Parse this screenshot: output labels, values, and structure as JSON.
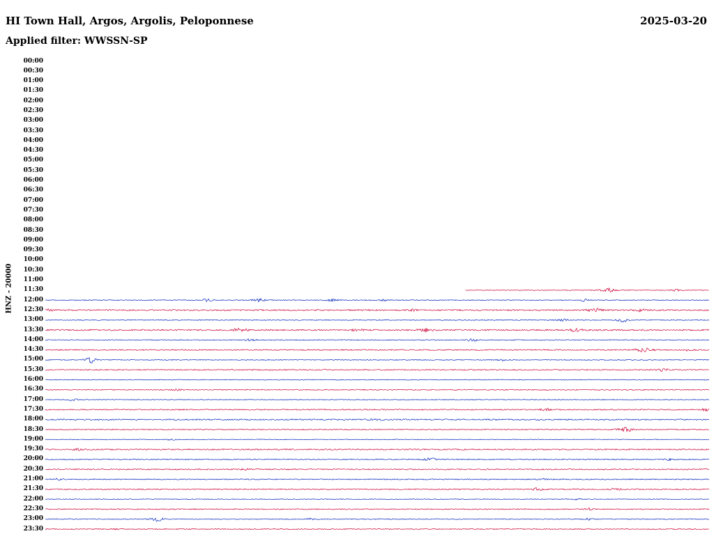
{
  "colors": {
    "red": "#cc0033",
    "blue": "#0022bb"
  },
  "chart_data": {
    "type": "line",
    "subtype": "helicorder-seismogram",
    "title": "HI Town Hall, Argos, Argolis, Peloponnese",
    "date": "2025-03-20",
    "filter": "Applied filter: WWSSN-SP",
    "y_axis_label": "HNZ - 20000",
    "time_step_minutes": 30,
    "row_labels": [
      "00:00",
      "00:30",
      "01:00",
      "01:30",
      "02:00",
      "02:30",
      "03:00",
      "03:30",
      "04:00",
      "04:30",
      "05:00",
      "05:30",
      "06:00",
      "06:30",
      "07:00",
      "07:30",
      "08:00",
      "08:30",
      "09:00",
      "09:30",
      "10:00",
      "10:30",
      "11:00",
      "11:30",
      "12:00",
      "12:30",
      "13:00",
      "13:30",
      "14:00",
      "14:30",
      "15:00",
      "15:30",
      "16:00",
      "16:30",
      "17:00",
      "17:30",
      "18:00",
      "18:30",
      "19:00",
      "19:30",
      "20:00",
      "20:30",
      "21:00",
      "21:30",
      "22:00",
      "22:30",
      "23:00",
      "23:30"
    ],
    "traces": [
      {
        "label": "11:30",
        "color": "red",
        "start": 0.633,
        "noise": 0.55,
        "bursts": [
          [
            0.847,
            3.0,
            7
          ],
          [
            0.95,
            1.2,
            5
          ]
        ]
      },
      {
        "label": "12:00",
        "color": "blue",
        "start": 0,
        "noise": 0.6,
        "bursts": [
          [
            0.243,
            1.8,
            5
          ],
          [
            0.322,
            2.2,
            6
          ],
          [
            0.432,
            1.8,
            5
          ],
          [
            0.512,
            1.6,
            5
          ],
          [
            0.812,
            1.4,
            4
          ]
        ]
      },
      {
        "label": "12:30",
        "color": "red",
        "start": 0,
        "noise": 0.95,
        "bursts": [
          [
            0.008,
            1.8,
            4
          ],
          [
            0.55,
            1.2,
            6
          ],
          [
            0.828,
            2.4,
            7
          ],
          [
            0.894,
            2.0,
            6
          ]
        ]
      },
      {
        "label": "13:00",
        "color": "blue",
        "start": 0,
        "noise": 0.6,
        "bursts": [
          [
            0.78,
            1.4,
            5
          ],
          [
            0.87,
            2.4,
            6
          ]
        ]
      },
      {
        "label": "13:30",
        "color": "red",
        "start": 0,
        "noise": 1.0,
        "bursts": [
          [
            0.294,
            2.4,
            7
          ],
          [
            0.47,
            1.6,
            6
          ],
          [
            0.572,
            2.2,
            7
          ],
          [
            0.8,
            2.0,
            6
          ]
        ]
      },
      {
        "label": "14:00",
        "color": "blue",
        "start": 0,
        "noise": 0.6,
        "bursts": [
          [
            0.31,
            2.0,
            5
          ],
          [
            0.642,
            2.4,
            5
          ]
        ]
      },
      {
        "label": "14:30",
        "color": "red",
        "start": 0,
        "noise": 0.8,
        "bursts": [
          [
            0.903,
            3.2,
            9
          ],
          [
            0.97,
            1.4,
            5
          ]
        ]
      },
      {
        "label": "15:00",
        "color": "blue",
        "start": 0,
        "noise": 0.6,
        "bursts": [
          [
            0.068,
            4.5,
            5
          ],
          [
            0.69,
            1.4,
            5
          ]
        ]
      },
      {
        "label": "15:30",
        "color": "red",
        "start": 0,
        "noise": 0.8,
        "bursts": [
          [
            0.93,
            1.8,
            6
          ]
        ]
      },
      {
        "label": "16:00",
        "color": "blue",
        "start": 0,
        "noise": 0.5,
        "bursts": []
      },
      {
        "label": "16:30",
        "color": "red",
        "start": 0,
        "noise": 0.7,
        "bursts": [
          [
            0.2,
            0.9,
            6
          ]
        ]
      },
      {
        "label": "17:00",
        "color": "blue",
        "start": 0,
        "noise": 0.55,
        "bursts": [
          [
            0.042,
            2.0,
            4
          ]
        ]
      },
      {
        "label": "17:30",
        "color": "red",
        "start": 0,
        "noise": 0.8,
        "bursts": [
          [
            0.754,
            1.8,
            5
          ],
          [
            0.995,
            2.2,
            4
          ]
        ]
      },
      {
        "label": "18:00",
        "color": "blue",
        "start": 0,
        "noise": 0.9,
        "bursts": [
          [
            0.5,
            1.0,
            8
          ]
        ]
      },
      {
        "label": "18:30",
        "color": "red",
        "start": 0,
        "noise": 0.7,
        "bursts": [
          [
            0.874,
            3.0,
            8
          ]
        ]
      },
      {
        "label": "19:00",
        "color": "blue",
        "start": 0,
        "noise": 0.5,
        "bursts": [
          [
            0.19,
            0.9,
            5
          ]
        ]
      },
      {
        "label": "19:30",
        "color": "red",
        "start": 0,
        "noise": 0.9,
        "bursts": [
          [
            0.05,
            1.1,
            5
          ]
        ]
      },
      {
        "label": "20:00",
        "color": "blue",
        "start": 0,
        "noise": 0.7,
        "bursts": [
          [
            0.578,
            2.8,
            6
          ],
          [
            0.94,
            1.3,
            5
          ]
        ]
      },
      {
        "label": "20:30",
        "color": "red",
        "start": 0,
        "noise": 0.8,
        "bursts": [
          [
            0.3,
            0.9,
            6
          ]
        ]
      },
      {
        "label": "21:00",
        "color": "blue",
        "start": 0,
        "noise": 0.7,
        "bursts": [
          [
            0.02,
            1.4,
            4
          ],
          [
            0.75,
            1.1,
            5
          ]
        ]
      },
      {
        "label": "21:30",
        "color": "red",
        "start": 0,
        "noise": 0.8,
        "bursts": [
          [
            0.74,
            2.0,
            5
          ],
          [
            0.86,
            1.4,
            5
          ]
        ]
      },
      {
        "label": "22:00",
        "color": "blue",
        "start": 0,
        "noise": 0.5,
        "bursts": [
          [
            0.8,
            1.1,
            5
          ]
        ]
      },
      {
        "label": "22:30",
        "color": "red",
        "start": 0,
        "noise": 0.7,
        "bursts": [
          [
            0.82,
            1.7,
            5
          ]
        ]
      },
      {
        "label": "23:00",
        "color": "blue",
        "start": 0,
        "noise": 0.6,
        "bursts": [
          [
            0.168,
            2.8,
            6
          ],
          [
            0.4,
            1.1,
            5
          ],
          [
            0.82,
            1.4,
            5
          ]
        ]
      },
      {
        "label": "23:30",
        "color": "red",
        "start": 0,
        "noise": 0.7,
        "bursts": [
          [
            0.1,
            1.1,
            5
          ]
        ]
      }
    ]
  }
}
